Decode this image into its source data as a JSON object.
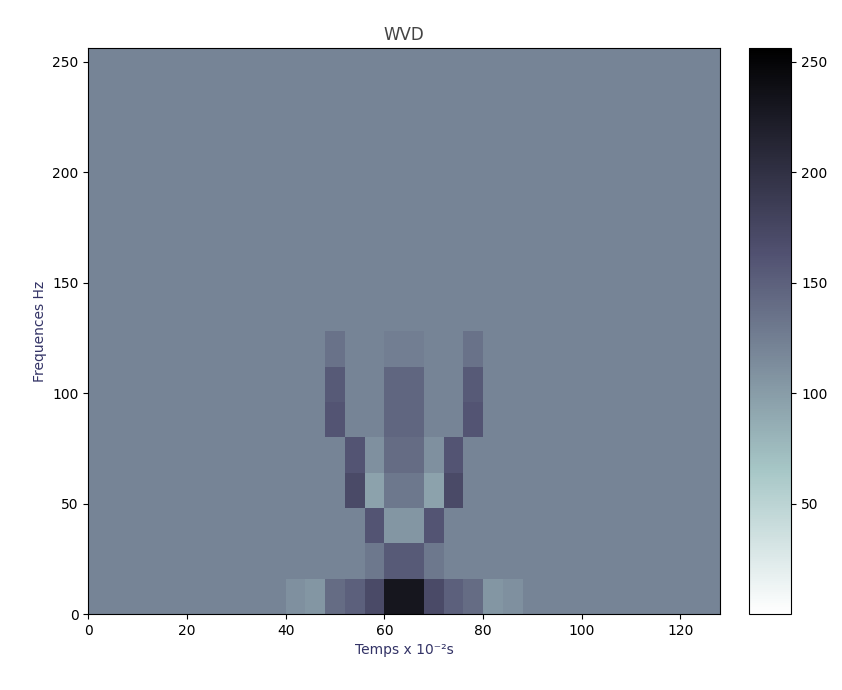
{
  "chart_data": {
    "type": "heatmap",
    "title": "WVD",
    "x_label": "Temps x 10⁻²s",
    "y_label": "Frequences Hz",
    "xlim": [
      0,
      128
    ],
    "xticks": [
      0,
      20,
      40,
      60,
      80,
      100,
      120
    ],
    "ylim": [
      0,
      256
    ],
    "yticks": [
      0,
      50,
      100,
      150,
      200,
      250
    ],
    "color": "bone_r",
    "color_range": [
      0,
      256
    ],
    "color_ticks": [
      50,
      100,
      150,
      200,
      250
    ],
    "x_edges": [
      0,
      4,
      8,
      12,
      16,
      20,
      24,
      28,
      32,
      36,
      40,
      44,
      48,
      52,
      56,
      60,
      64,
      68,
      72,
      76,
      80,
      84,
      88,
      92,
      96,
      100,
      104,
      108,
      112,
      116,
      120,
      124,
      128
    ],
    "y_edges": [
      0,
      16,
      32,
      48,
      64,
      80,
      96,
      112,
      128,
      144,
      160,
      176,
      192,
      208,
      224,
      240,
      256
    ],
    "cells": [
      [
        120,
        120,
        120,
        120,
        120,
        120,
        120,
        120,
        120,
        120,
        110,
        105,
        140,
        150,
        170,
        230,
        230,
        170,
        150,
        140,
        105,
        110,
        120,
        120,
        120,
        120,
        120,
        120,
        120,
        120,
        120,
        120
      ],
      [
        120,
        120,
        120,
        120,
        120,
        120,
        120,
        120,
        120,
        120,
        120,
        120,
        120,
        120,
        130,
        155,
        155,
        130,
        120,
        120,
        120,
        120,
        120,
        120,
        120,
        120,
        120,
        120,
        120,
        120,
        120,
        120
      ],
      [
        120,
        120,
        120,
        120,
        120,
        120,
        120,
        120,
        120,
        120,
        120,
        120,
        120,
        120,
        160,
        105,
        105,
        160,
        120,
        120,
        120,
        120,
        120,
        120,
        120,
        120,
        120,
        120,
        120,
        120,
        120,
        120
      ],
      [
        120,
        120,
        120,
        120,
        120,
        120,
        120,
        120,
        120,
        120,
        120,
        120,
        120,
        170,
        95,
        130,
        130,
        95,
        170,
        120,
        120,
        120,
        120,
        120,
        120,
        120,
        120,
        120,
        120,
        120,
        120,
        120
      ],
      [
        120,
        120,
        120,
        120,
        120,
        120,
        120,
        120,
        120,
        120,
        120,
        120,
        120,
        160,
        110,
        140,
        140,
        110,
        160,
        120,
        120,
        120,
        120,
        120,
        120,
        120,
        120,
        120,
        120,
        120,
        120,
        120
      ],
      [
        120,
        120,
        120,
        120,
        120,
        120,
        120,
        120,
        120,
        120,
        120,
        120,
        160,
        120,
        120,
        145,
        145,
        120,
        120,
        160,
        120,
        120,
        120,
        120,
        120,
        120,
        120,
        120,
        120,
        120,
        120,
        120
      ],
      [
        120,
        120,
        120,
        120,
        120,
        120,
        120,
        120,
        120,
        120,
        120,
        120,
        155,
        120,
        120,
        145,
        145,
        120,
        120,
        155,
        120,
        120,
        120,
        120,
        120,
        120,
        120,
        120,
        120,
        120,
        120,
        120
      ],
      [
        120,
        120,
        120,
        120,
        120,
        120,
        120,
        120,
        120,
        120,
        120,
        120,
        135,
        120,
        120,
        125,
        125,
        120,
        120,
        135,
        120,
        120,
        120,
        120,
        120,
        120,
        120,
        120,
        120,
        120,
        120,
        120
      ],
      [
        120,
        120,
        120,
        120,
        120,
        120,
        120,
        120,
        120,
        120,
        120,
        120,
        120,
        120,
        120,
        120,
        120,
        120,
        120,
        120,
        120,
        120,
        120,
        120,
        120,
        120,
        120,
        120,
        120,
        120,
        120,
        120
      ],
      [
        120,
        120,
        120,
        120,
        120,
        120,
        120,
        120,
        120,
        120,
        120,
        120,
        120,
        120,
        120,
        120,
        120,
        120,
        120,
        120,
        120,
        120,
        120,
        120,
        120,
        120,
        120,
        120,
        120,
        120,
        120,
        120
      ],
      [
        120,
        120,
        120,
        120,
        120,
        120,
        120,
        120,
        120,
        120,
        120,
        120,
        120,
        120,
        120,
        120,
        120,
        120,
        120,
        120,
        120,
        120,
        120,
        120,
        120,
        120,
        120,
        120,
        120,
        120,
        120,
        120
      ],
      [
        120,
        120,
        120,
        120,
        120,
        120,
        120,
        120,
        120,
        120,
        120,
        120,
        120,
        120,
        120,
        120,
        120,
        120,
        120,
        120,
        120,
        120,
        120,
        120,
        120,
        120,
        120,
        120,
        120,
        120,
        120,
        120
      ],
      [
        120,
        120,
        120,
        120,
        120,
        120,
        120,
        120,
        120,
        120,
        120,
        120,
        120,
        120,
        120,
        120,
        120,
        120,
        120,
        120,
        120,
        120,
        120,
        120,
        120,
        120,
        120,
        120,
        120,
        120,
        120,
        120
      ],
      [
        120,
        120,
        120,
        120,
        120,
        120,
        120,
        120,
        120,
        120,
        120,
        120,
        120,
        120,
        120,
        120,
        120,
        120,
        120,
        120,
        120,
        120,
        120,
        120,
        120,
        120,
        120,
        120,
        120,
        120,
        120,
        120
      ],
      [
        120,
        120,
        120,
        120,
        120,
        120,
        120,
        120,
        120,
        120,
        120,
        120,
        120,
        120,
        120,
        120,
        120,
        120,
        120,
        120,
        120,
        120,
        120,
        120,
        120,
        120,
        120,
        120,
        120,
        120,
        120,
        120
      ],
      [
        120,
        120,
        120,
        120,
        120,
        120,
        120,
        120,
        120,
        120,
        120,
        120,
        120,
        120,
        120,
        120,
        120,
        120,
        120,
        120,
        120,
        120,
        120,
        120,
        120,
        120,
        120,
        120,
        120,
        120,
        120,
        120
      ]
    ]
  }
}
